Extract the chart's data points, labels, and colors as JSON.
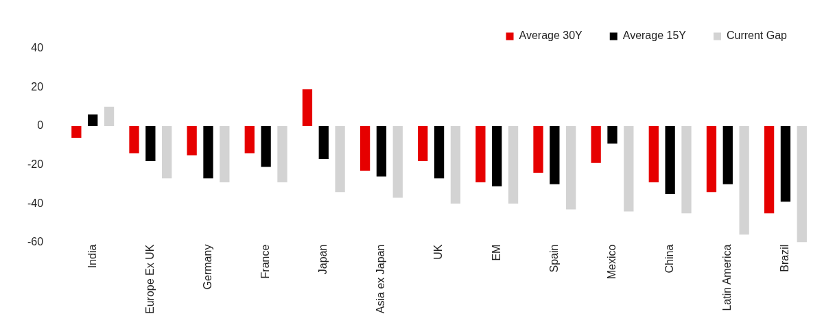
{
  "chart_data": {
    "type": "bar",
    "categories": [
      "India",
      "Europe Ex UK",
      "Germany",
      "France",
      "Japan",
      "Asia ex Japan",
      "UK",
      "EM",
      "Spain",
      "Mexico",
      "China",
      "Latin America",
      "Brazil"
    ],
    "series": [
      {
        "name": "Average 30Y",
        "color": "#e60000",
        "values": [
          -6,
          -14,
          -15,
          -14,
          19,
          -23,
          -18,
          -29,
          -24,
          -19,
          -29,
          -34,
          -45
        ]
      },
      {
        "name": "Average 15Y",
        "color": "#000000",
        "values": [
          6,
          -18,
          -27,
          -21,
          -17,
          -26,
          -27,
          -31,
          -30,
          -9,
          -35,
          -30,
          -39
        ]
      },
      {
        "name": "Current Gap",
        "color": "#d3d3d3",
        "values": [
          10,
          -27,
          -29,
          -29,
          -34,
          -37,
          -40,
          -40,
          -43,
          -44,
          -45,
          -56,
          -60
        ]
      }
    ],
    "ylim": [
      -60,
      40
    ],
    "yticks": [
      -60,
      -40,
      -20,
      0,
      20,
      40
    ],
    "grid": false,
    "legend": "top right"
  }
}
